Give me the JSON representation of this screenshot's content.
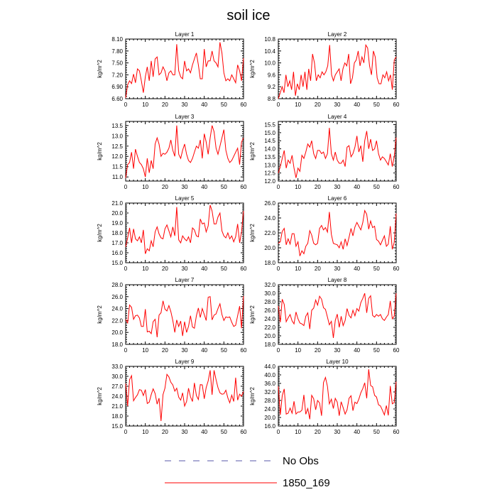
{
  "figure": {
    "title": "soil ice",
    "legend": [
      {
        "label": "No Obs",
        "style": "dashed",
        "color": "#5a5aa8"
      },
      {
        "label": "1850_169",
        "style": "solid",
        "color": "#ff0000"
      }
    ]
  },
  "chart_data": [
    {
      "type": "line",
      "title": "Layer 1",
      "ylabel": "kg/m^2",
      "xlim": [
        0,
        60
      ],
      "ylim": [
        6.6,
        8.1
      ],
      "xticks": [
        0,
        10,
        20,
        30,
        40,
        50,
        60
      ],
      "yticks": [
        "6.60",
        "6.90",
        "7.20",
        "7.50",
        "7.80",
        "8.10"
      ],
      "series": [
        {
          "color": "#ff0000",
          "values": [
            6.62,
            6.95,
            7.05,
            6.98,
            7.22,
            7.0,
            7.35,
            7.3,
            7.05,
            6.75,
            7.15,
            7.4,
            7.05,
            7.55,
            7.15,
            7.6,
            7.65,
            7.2,
            7.25,
            7.4,
            7.3,
            7.05,
            7.25,
            7.3,
            7.2,
            7.2,
            7.97,
            7.3,
            7.15,
            7.1,
            7.55,
            7.3,
            7.35,
            7.25,
            7.45,
            7.6,
            7.75,
            7.45,
            7.1,
            7.1,
            7.85,
            7.4,
            7.55,
            7.55,
            7.8,
            7.55,
            7.5,
            7.4,
            8.02,
            7.75,
            7.25,
            7.05,
            7.1,
            7.05,
            7.2,
            7.1,
            7.0,
            7.45,
            7.3,
            7.05,
            7.62
          ]
        }
      ]
    },
    {
      "type": "line",
      "title": "Layer 2",
      "ylabel": "kg/m^2",
      "xlim": [
        0,
        60
      ],
      "ylim": [
        8.8,
        10.8
      ],
      "xticks": [
        0,
        10,
        20,
        30,
        40,
        50,
        60
      ],
      "yticks": [
        "8.8",
        "9.2",
        "9.6",
        "10.0",
        "10.4",
        "10.8"
      ],
      "series": [
        {
          "color": "#ff0000",
          "values": [
            8.8,
            9.0,
            9.2,
            9.0,
            9.6,
            9.2,
            9.4,
            9.1,
            9.7,
            8.9,
            9.3,
            9.1,
            9.6,
            9.2,
            9.7,
            9.1,
            9.8,
            9.4,
            10.3,
            10.0,
            9.4,
            9.6,
            9.5,
            9.7,
            9.6,
            9.7,
            9.9,
            10.6,
            9.6,
            9.4,
            9.6,
            9.7,
            9.8,
            9.4,
            9.8,
            10.0,
            9.9,
            10.3,
            9.3,
            9.5,
            10.0,
            10.1,
            10.4,
            9.9,
            10.2,
            10.0,
            10.6,
            10.5,
            9.9,
            9.6,
            10.4,
            10.2,
            9.5,
            9.3,
            9.3,
            9.6,
            9.5,
            9.7,
            9.4,
            9.6,
            9.1,
            10.1,
            10.2
          ]
        }
      ]
    },
    {
      "type": "line",
      "title": "Layer 3",
      "ylabel": "kg/m^2",
      "xlim": [
        0,
        60
      ],
      "ylim": [
        10.8,
        13.7
      ],
      "xticks": [
        0,
        10,
        20,
        30,
        40,
        50,
        60
      ],
      "yticks": [
        "11.0",
        "11.5",
        "12.0",
        "12.5",
        "13.0",
        "13.5"
      ],
      "series": [
        {
          "color": "#ff0000",
          "values": [
            10.95,
            11.6,
            11.7,
            12.2,
            11.4,
            12.35,
            12.0,
            11.7,
            11.6,
            11.4,
            11.0,
            11.9,
            11.2,
            11.8,
            11.4,
            12.6,
            12.9,
            12.6,
            12.0,
            12.15,
            12.1,
            12.2,
            12.4,
            12.8,
            12.3,
            12.0,
            13.5,
            12.1,
            11.9,
            12.3,
            12.6,
            12.1,
            11.8,
            11.7,
            11.9,
            12.2,
            12.5,
            12.4,
            12.8,
            11.9,
            13.1,
            12.7,
            12.1,
            12.9,
            13.5,
            13.2,
            12.4,
            12.1,
            12.5,
            12.9,
            13.3,
            12.3,
            11.9,
            11.7,
            11.8,
            12.0,
            12.2,
            12.4,
            11.6,
            12.7,
            12.9
          ]
        }
      ]
    },
    {
      "type": "line",
      "title": "Layer 4",
      "ylabel": "kg/m^2",
      "xlim": [
        0,
        60
      ],
      "ylim": [
        12.0,
        15.7
      ],
      "xticks": [
        0,
        10,
        20,
        30,
        40,
        50,
        60
      ],
      "yticks": [
        "12.0",
        "12.5",
        "13.0",
        "13.5",
        "14.0",
        "14.5",
        "15.0",
        "15.5"
      ],
      "series": [
        {
          "color": "#ff0000",
          "values": [
            12.5,
            12.9,
            13.4,
            13.9,
            12.8,
            13.3,
            13.1,
            13.6,
            12.8,
            12.2,
            12.8,
            12.6,
            13.6,
            13.4,
            13.8,
            14.3,
            14.1,
            14.5,
            13.7,
            13.4,
            13.9,
            13.9,
            13.7,
            13.8,
            13.4,
            13.7,
            15.3,
            13.7,
            13.3,
            13.8,
            13.3,
            13.1,
            13.1,
            13.3,
            12.9,
            14.1,
            14.2,
            13.5,
            13.7,
            14.1,
            14.8,
            13.8,
            14.2,
            13.2,
            14.5,
            15.1,
            14.0,
            14.6,
            13.9,
            14.0,
            14.5,
            13.7,
            13.3,
            13.5,
            13.4,
            13.2,
            13.0,
            13.7,
            12.9,
            13.5,
            14.7
          ]
        }
      ]
    },
    {
      "type": "line",
      "title": "Layer 5",
      "ylabel": "kg/m^2",
      "xlim": [
        0,
        60
      ],
      "ylim": [
        15.0,
        21.0
      ],
      "xticks": [
        0,
        10,
        20,
        30,
        40,
        50,
        60
      ],
      "yticks": [
        "15.0",
        "16.0",
        "17.0",
        "18.0",
        "19.0",
        "20.0",
        "21.0"
      ],
      "series": [
        {
          "color": "#ff0000",
          "values": [
            16.6,
            17.5,
            18.5,
            17.0,
            18.4,
            17.4,
            17.2,
            17.6,
            17.0,
            18.3,
            15.9,
            16.4,
            16.2,
            17.2,
            16.6,
            18.1,
            18.6,
            17.9,
            17.5,
            17.4,
            18.4,
            18.8,
            18.2,
            17.6,
            18.6,
            17.7,
            20.6,
            17.3,
            17.0,
            17.7,
            17.4,
            17.2,
            17.6,
            17.0,
            18.5,
            18.3,
            17.7,
            17.6,
            19.4,
            18.9,
            19.0,
            18.1,
            18.7,
            20.8,
            20.2,
            18.9,
            18.9,
            19.6,
            20.0,
            18.2,
            17.7,
            17.5,
            18.0,
            17.4,
            17.7,
            17.1,
            17.6,
            18.9,
            17.0,
            18.1,
            20.2
          ]
        }
      ]
    },
    {
      "type": "line",
      "title": "Layer 6",
      "ylabel": "kg/m^2",
      "xlim": [
        0,
        60
      ],
      "ylim": [
        18.0,
        26.0
      ],
      "xticks": [
        0,
        10,
        20,
        30,
        40,
        50,
        60
      ],
      "yticks": [
        "18.0",
        "20.0",
        "22.0",
        "24.0",
        "26.0"
      ],
      "series": [
        {
          "color": "#ff0000",
          "values": [
            20.6,
            20.8,
            22.2,
            22.6,
            20.4,
            21.2,
            20.5,
            21.9,
            21.9,
            20.2,
            20.8,
            18.9,
            19.6,
            19.2,
            20.2,
            20.6,
            22.3,
            21.7,
            20.6,
            20.4,
            20.6,
            22.6,
            23.0,
            22.4,
            22.7,
            22.1,
            24.8,
            21.8,
            20.6,
            20.5,
            20.4,
            20.0,
            20.8,
            19.8,
            21.2,
            20.3,
            21.4,
            22.6,
            21.6,
            22.8,
            23.4,
            22.9,
            22.4,
            23.4,
            25.0,
            24.5,
            22.5,
            23.6,
            22.7,
            22.9,
            21.1,
            20.9,
            20.4,
            21.0,
            21.6,
            20.2,
            20.5,
            22.9,
            19.8,
            20.7,
            24.6
          ]
        }
      ]
    },
    {
      "type": "line",
      "title": "Layer 7",
      "ylabel": "kg/m^2",
      "xlim": [
        0,
        60
      ],
      "ylim": [
        18.0,
        28.0
      ],
      "xticks": [
        0,
        10,
        20,
        30,
        40,
        50,
        60
      ],
      "yticks": [
        "18.0",
        "20.0",
        "22.0",
        "24.0",
        "26.0",
        "28.0"
      ],
      "series": [
        {
          "color": "#ff0000",
          "values": [
            22.2,
            21.6,
            24.6,
            24.2,
            22.2,
            22.8,
            22.9,
            22.4,
            21.0,
            21.0,
            23.9,
            20.1,
            20.2,
            19.8,
            21.8,
            22.2,
            19.2,
            22.9,
            23.3,
            25.3,
            23.9,
            23.6,
            24.5,
            23.5,
            22.0,
            20.0,
            22.1,
            21.0,
            21.9,
            19.4,
            21.8,
            20.0,
            21.0,
            22.8,
            20.9,
            20.7,
            22.8,
            24.1,
            22.5,
            24.0,
            23.0,
            22.0,
            25.9,
            26.0,
            22.1,
            22.9,
            23.1,
            24.0,
            24.8,
            23.0,
            22.0,
            22.6,
            22.5,
            22.6,
            21.7,
            21.0,
            21.2,
            22.8,
            24.4,
            20.7,
            26.1
          ]
        }
      ]
    },
    {
      "type": "line",
      "title": "Layer 8",
      "ylabel": "kg/m^2",
      "xlim": [
        0,
        60
      ],
      "ylim": [
        18.0,
        32.0
      ],
      "xticks": [
        0,
        10,
        20,
        30,
        40,
        50,
        60
      ],
      "yticks": [
        "18.0",
        "20.0",
        "22.0",
        "24.0",
        "26.0",
        "28.0",
        "30.0",
        "32.0"
      ],
      "series": [
        {
          "color": "#ff0000",
          "values": [
            27.0,
            23.2,
            28.6,
            27.4,
            23.3,
            24.2,
            25.0,
            23.5,
            22.8,
            25.6,
            24.0,
            23.0,
            22.8,
            22.4,
            24.6,
            25.4,
            21.6,
            26.0,
            26.5,
            28.4,
            27.2,
            29.3,
            28.6,
            26.6,
            26.2,
            24.4,
            22.6,
            23.4,
            19.5,
            23.6,
            25.1,
            22.0,
            24.6,
            22.4,
            23.6,
            26.4,
            24.8,
            24.2,
            26.0,
            24.7,
            26.4,
            25.8,
            27.8,
            28.8,
            30.0,
            25.4,
            28.8,
            29.4,
            24.8,
            24.4,
            25.0,
            24.6,
            25.0,
            24.0,
            23.6,
            24.4,
            25.0,
            28.2,
            24.0,
            24.6,
            30.0
          ]
        }
      ]
    },
    {
      "type": "line",
      "title": "Layer 9",
      "ylabel": "kg/m^2",
      "xlim": [
        0,
        60
      ],
      "ylim": [
        15.0,
        33.0
      ],
      "xticks": [
        0,
        10,
        20,
        30,
        40,
        50,
        60
      ],
      "yticks": [
        "15.0",
        "18.0",
        "21.0",
        "24.0",
        "27.0",
        "30.0",
        "33.0"
      ],
      "series": [
        {
          "color": "#ff0000",
          "values": [
            27.8,
            21.0,
            29.0,
            30.2,
            22.6,
            23.6,
            24.4,
            26.0,
            25.8,
            24.2,
            26.0,
            21.8,
            22.2,
            24.5,
            26.2,
            24.8,
            21.6,
            23.4,
            16.5,
            24.5,
            26.4,
            30.6,
            29.8,
            28.2,
            27.4,
            25.5,
            26.4,
            23.7,
            22.8,
            25.0,
            21.0,
            22.4,
            26.4,
            23.8,
            22.4,
            28.0,
            24.2,
            23.0,
            27.5,
            27.4,
            23.2,
            26.6,
            28.6,
            31.8,
            24.4,
            31.8,
            29.0,
            26.6,
            25.0,
            24.6,
            24.7,
            25.8,
            23.5,
            22.0,
            24.3,
            22.4,
            29.6,
            22.8,
            24.6,
            24.0,
            25.4
          ]
        }
      ]
    },
    {
      "type": "line",
      "title": "Layer 10",
      "ylabel": "kg/m^2",
      "xlim": [
        0,
        60
      ],
      "ylim": [
        16.0,
        44.0
      ],
      "xticks": [
        0,
        10,
        20,
        30,
        40,
        50,
        60
      ],
      "yticks": [
        "16.0",
        "20.0",
        "24.0",
        "28.0",
        "32.0",
        "36.0",
        "40.0",
        "44.0"
      ],
      "series": [
        {
          "color": "#ff0000",
          "values": [
            34.6,
            21.2,
            30.2,
            33.4,
            21.6,
            22.0,
            24.4,
            22.0,
            27.6,
            21.6,
            22.6,
            22.6,
            23.4,
            30.6,
            21.5,
            24.2,
            19.2,
            30.4,
            28.8,
            23.6,
            28.0,
            26.8,
            20.8,
            36.4,
            38.8,
            34.6,
            26.4,
            28.6,
            24.2,
            29.0,
            27.2,
            20.8,
            27.4,
            24.6,
            21.6,
            23.6,
            29.0,
            30.2,
            23.2,
            27.2,
            26.5,
            28.6,
            31.6,
            33.6,
            36.3,
            29.0,
            42.6,
            35.0,
            34.4,
            30.4,
            29.6,
            26.0,
            25.4,
            23.4,
            21.2,
            25.6,
            21.0,
            34.8,
            26.4,
            27.0,
            36.8
          ]
        }
      ]
    }
  ]
}
